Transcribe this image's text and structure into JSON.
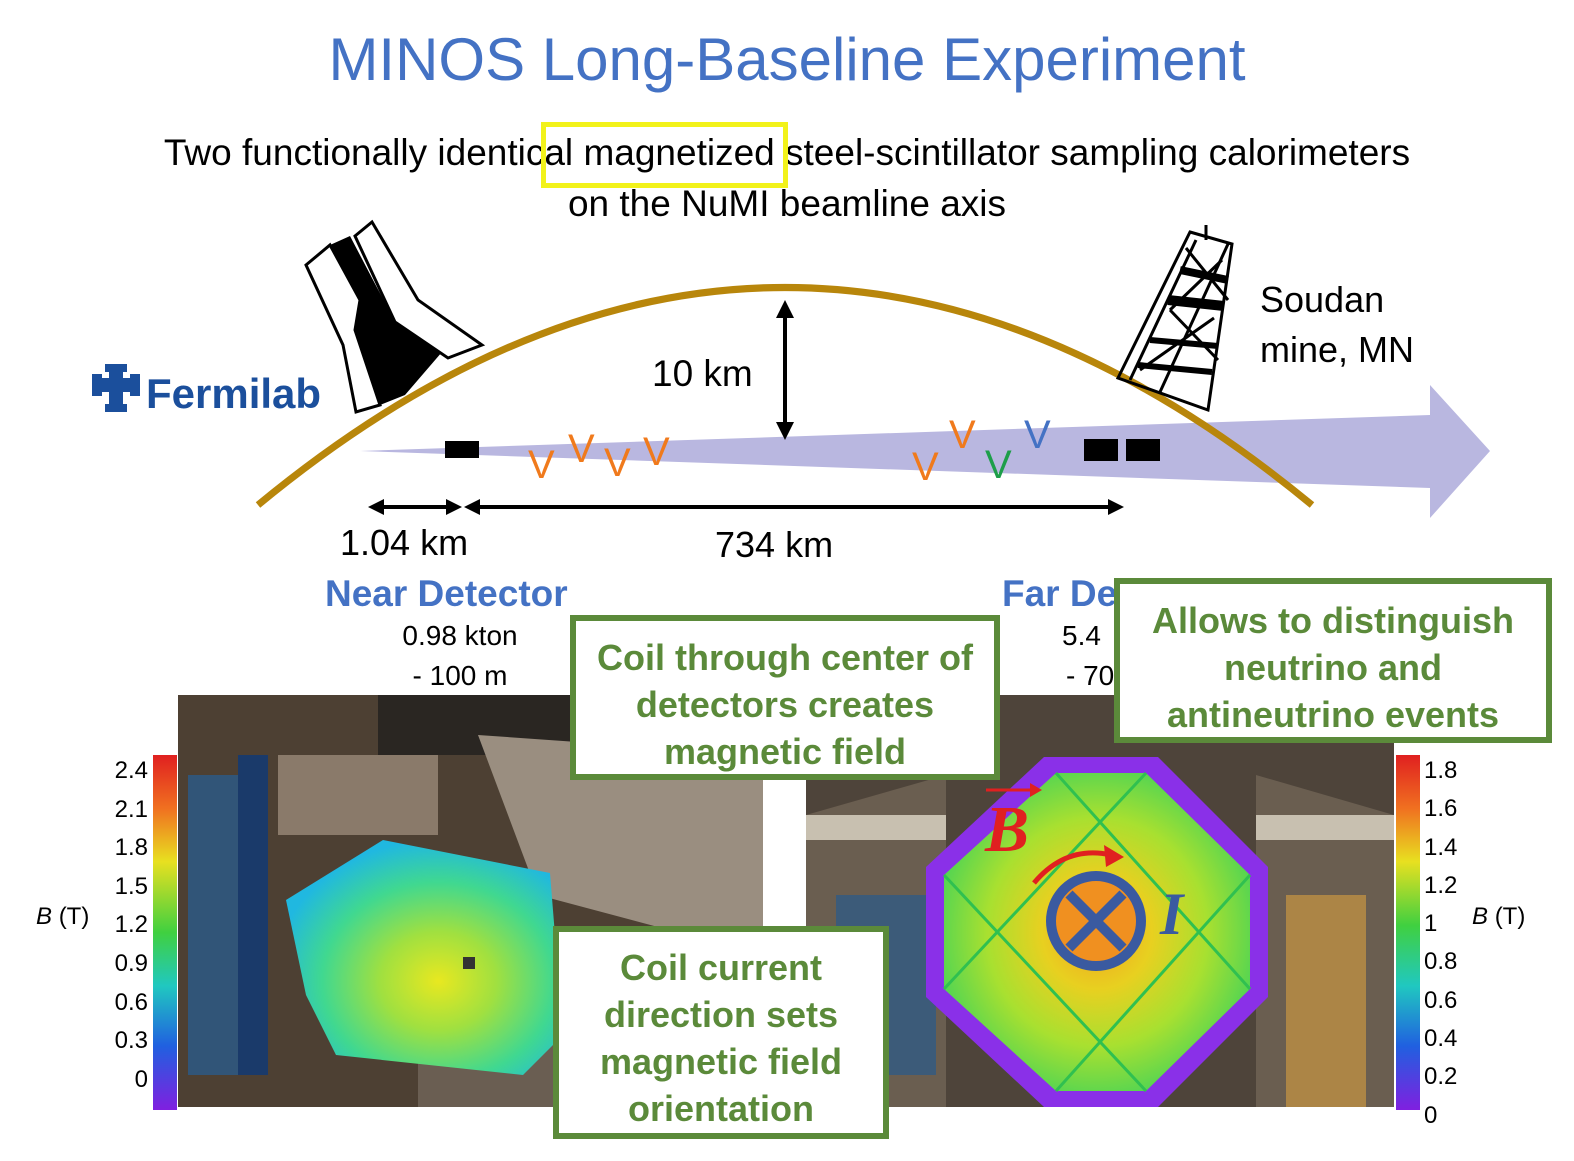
{
  "title": "MINOS Long-Baseline Experiment",
  "subtitle": {
    "line1_before": "Two functionally identical",
    "line1_highlight": "magnetized",
    "line1_after": "steel-scintillator sampling calorimeters",
    "line2": "on the NuMI beamline axis"
  },
  "fermilab_logo": "Fermilab",
  "soudan": [
    "Soudan",
    "mine, MN"
  ],
  "depth_label": "10 km",
  "near_distance": "1.04 km",
  "far_distance": "734 km",
  "nu_symbol": "V",
  "near_detector": {
    "title": "Near Detector",
    "mass": "0.98 kton",
    "depth": "- 100  m"
  },
  "far_detector": {
    "title": "Far Detector",
    "mass": "5.4",
    "depth": "- 70"
  },
  "callouts": {
    "coil_center": "Coil through center of detectors creates magnetic field",
    "distinguish": "Allows to distinguish neutrino and antineutrino events",
    "coil_current": "Coil current direction sets magnetic field orientation"
  },
  "near_colorbar": {
    "label_var": "B",
    "label_unit": "(T)",
    "ticks": [
      "2.4",
      "2.1",
      "1.8",
      "1.5",
      "1.2",
      "0.9",
      "0.6",
      "0.3",
      "0"
    ]
  },
  "far_colorbar": {
    "label_var": "B",
    "label_unit": "(T)",
    "ticks": [
      "1.8",
      "1.6",
      "1.4",
      "1.2",
      "1",
      "0.8",
      "0.6",
      "0.4",
      "0.2",
      "0"
    ]
  },
  "field_symbol": "B",
  "current_symbol": "I",
  "colors": {
    "title_blue": "#4472C4",
    "highlight_yellow": "#F2F21A",
    "earth_arc": "#B8860B",
    "beam": "#B9B7E0",
    "orange_nu": "#F07A1C",
    "green_nu": "#1E9E4A",
    "blue_nu": "#4472C4",
    "callout_green": "#5B8A3A",
    "fermilab_blue": "#1B4F9C"
  }
}
